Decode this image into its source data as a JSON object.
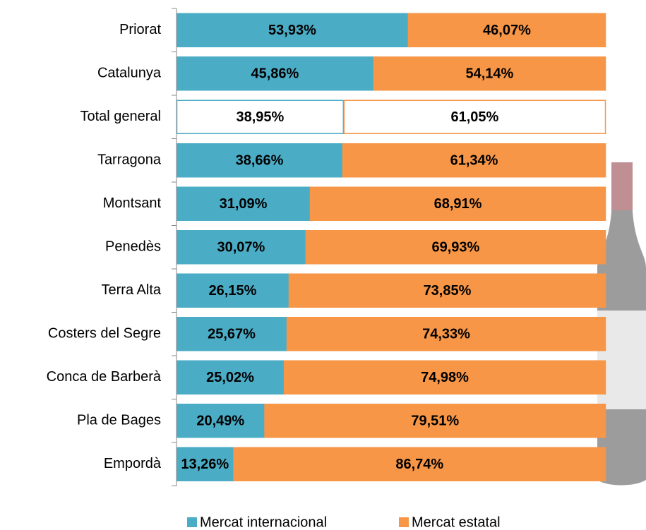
{
  "chart_data": {
    "type": "stacked_bar_horizontal",
    "categories": [
      "Priorat",
      "Catalunya",
      "Total general",
      "Tarragona",
      "Montsant",
      "Penedès",
      "Terra Alta",
      "Costers del Segre",
      "Conca de Barberà",
      "Pla de Bages",
      "Empordà"
    ],
    "series": [
      {
        "name": "Mercat internacional",
        "color": "#4bacc6",
        "bar_fills": [
          "#4bacc6",
          "#4bacc6",
          "#ffffff",
          "#4bacc6",
          "#4bacc6",
          "#4bacc6",
          "#4bacc6",
          "#4bacc6",
          "#4bacc6",
          "#4bacc6",
          "#4bacc6"
        ],
        "values": [
          53.93,
          45.86,
          38.95,
          38.66,
          31.09,
          30.07,
          26.15,
          25.67,
          25.02,
          20.49,
          13.26
        ],
        "value_labels": [
          "53,93%",
          "45,86%",
          "38,95%",
          "38,66%",
          "31,09%",
          "30,07%",
          "26,15%",
          "25,67%",
          "25,02%",
          "20,49%",
          "13,26%"
        ]
      },
      {
        "name": "Mercat estatal",
        "color": "#f79646",
        "bar_fills": [
          "#f79646",
          "#f79646",
          "#ffffff",
          "#f79646",
          "#f79646",
          "#f79646",
          "#f79646",
          "#f79646",
          "#f79646",
          "#f79646",
          "#f79646"
        ],
        "values": [
          46.07,
          54.14,
          61.05,
          61.34,
          68.91,
          69.93,
          73.85,
          74.33,
          74.98,
          79.51,
          86.74
        ],
        "value_labels": [
          "46,07%",
          "54,14%",
          "61,05%",
          "61,34%",
          "68,91%",
          "69,93%",
          "73,85%",
          "74,33%",
          "74,98%",
          "79,51%",
          "86,74%"
        ]
      }
    ],
    "legend": "bottom"
  }
}
